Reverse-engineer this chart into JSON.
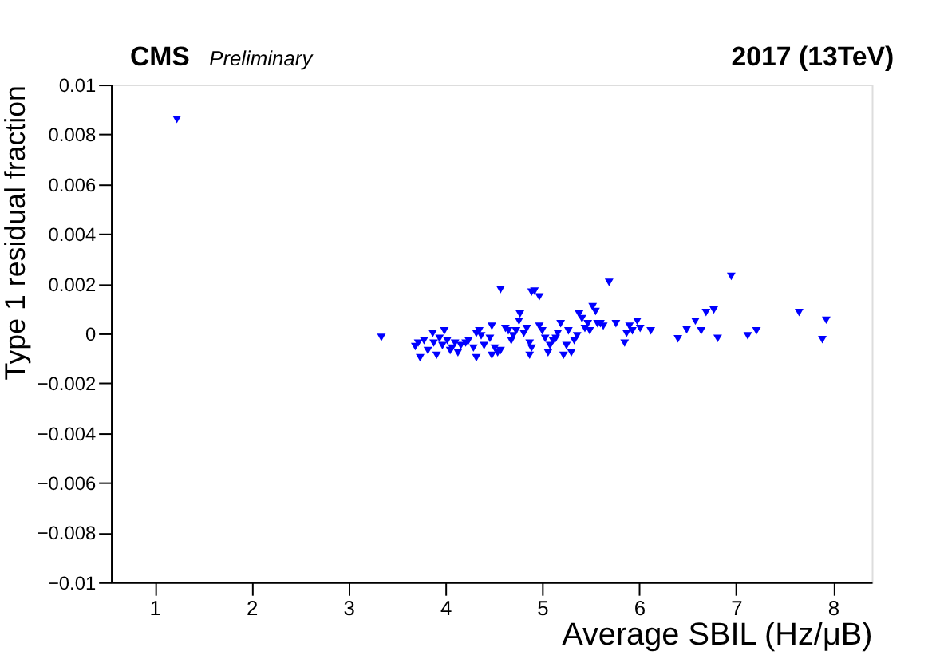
{
  "chart_data": {
    "type": "scatter",
    "title": "CMS",
    "subtitle": "Preliminary",
    "annotations": [
      "2017  (13TeV)"
    ],
    "xlabel": "Average SBIL (Hz/μB)",
    "ylabel": "Type 1 residual fraction",
    "xlim": [
      0.55,
      8.4
    ],
    "xticks": [
      1,
      2,
      3,
      4,
      5,
      6,
      7,
      8
    ],
    "ylim": [
      -0.01,
      0.01
    ],
    "yticks": [
      -0.01,
      -0.008,
      -0.006,
      -0.004,
      -0.002,
      0,
      0.002,
      0.004,
      0.006,
      0.008,
      0.01
    ],
    "grid": false,
    "marker": "triangle",
    "series": [
      {
        "color": "#0000ff",
        "x": [
          1.23,
          3.34,
          3.69,
          3.74,
          3.72,
          3.78,
          3.82,
          3.87,
          3.88,
          3.91,
          3.94,
          3.97,
          3.99,
          4.02,
          4.05,
          4.07,
          4.1,
          4.13,
          4.16,
          4.21,
          4.24,
          4.29,
          4.32,
          4.35,
          4.37,
          4.32,
          4.4,
          4.46,
          4.48,
          4.48,
          4.51,
          4.54,
          4.57,
          4.57,
          4.62,
          4.65,
          4.68,
          4.7,
          4.76,
          4.77,
          4.73,
          4.81,
          4.84,
          4.87,
          4.87,
          4.89,
          4.89,
          4.92,
          4.97,
          4.97,
          5.0,
          5.03,
          5.06,
          5.08,
          5.11,
          5.14,
          5.16,
          5.19,
          5.22,
          5.25,
          5.27,
          5.3,
          5.33,
          5.36,
          5.38,
          5.41,
          5.44,
          5.47,
          5.49,
          5.52,
          5.55,
          5.57,
          5.6,
          5.63,
          5.69,
          5.76,
          5.85,
          5.87,
          5.9,
          5.93,
          5.98,
          6.01,
          6.12,
          6.4,
          6.49,
          6.58,
          6.64,
          6.69,
          6.77,
          6.81,
          6.95,
          7.12,
          7.21,
          7.65,
          7.89,
          7.93
        ],
        "values": [
          0.0086,
          -0.00016,
          -0.00053,
          -0.00098,
          -0.00039,
          -0.00029,
          -0.00069,
          0.0,
          -0.00039,
          -0.00088,
          -0.0002,
          -0.00049,
          0.0001,
          -0.00029,
          -0.00069,
          -0.00059,
          -0.00039,
          -0.00078,
          -0.00049,
          -0.00039,
          -0.00029,
          -0.00059,
          0.0,
          0.0001,
          -0.0001,
          -0.00098,
          -0.00049,
          -0.0002,
          0.00029,
          -0.00088,
          -0.00059,
          -0.00078,
          -0.00069,
          0.00176,
          0.0002,
          0.0001,
          -0.00029,
          -0.0001,
          0.00049,
          0.00078,
          0.0001,
          0.0,
          0.0002,
          -0.00039,
          -0.00088,
          -0.00059,
          0.00166,
          0.0017,
          0.00147,
          0.00029,
          0.0001,
          -0.0002,
          -0.00078,
          -0.00049,
          -0.00029,
          -0.0002,
          0.0,
          0.00039,
          -0.00088,
          -0.00049,
          0.0001,
          -0.00078,
          -0.00029,
          -0.0001,
          0.00078,
          0.00059,
          0.0002,
          0.00039,
          0.0001,
          0.00107,
          0.00088,
          0.00039,
          0.00039,
          0.00029,
          0.00205,
          0.00039,
          -0.00039,
          0.0,
          0.00029,
          0.0001,
          0.00049,
          0.0002,
          0.0001,
          -0.00022,
          0.00014,
          0.00049,
          0.0001,
          0.00084,
          0.00094,
          -0.0002,
          0.00229,
          -0.0001,
          0.0001,
          0.00084,
          -0.00025,
          0.00053
        ]
      }
    ]
  }
}
